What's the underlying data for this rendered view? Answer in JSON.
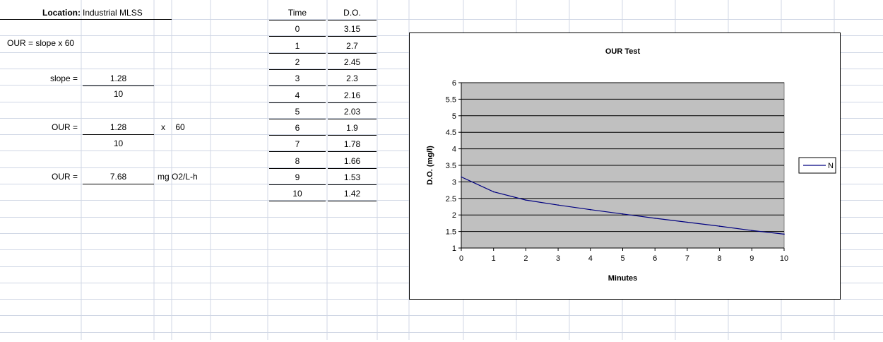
{
  "sheet": {
    "location_label": "Location:",
    "location_value": "Industrial MLSS",
    "formula": "OUR = slope x 60",
    "slope_label": "slope =",
    "slope_numerator": "1.28",
    "slope_denominator": "10",
    "our_label_1": "OUR =",
    "our_numerator": "1.28",
    "our_denominator": "10",
    "times_sign": "x",
    "multiplier": "60",
    "our_label_2": "OUR =",
    "our_result": "7.68",
    "our_units": "mg O2/L-h"
  },
  "table": {
    "headers": [
      "Time",
      "D.O."
    ],
    "rows": [
      [
        "0",
        "3.15"
      ],
      [
        "1",
        "2.7"
      ],
      [
        "2",
        "2.45"
      ],
      [
        "3",
        "2.3"
      ],
      [
        "4",
        "2.16"
      ],
      [
        "5",
        "2.03"
      ],
      [
        "6",
        "1.9"
      ],
      [
        "7",
        "1.78"
      ],
      [
        "8",
        "1.66"
      ],
      [
        "9",
        "1.53"
      ],
      [
        "10",
        "1.42"
      ]
    ]
  },
  "chart_data": {
    "type": "line",
    "title": "OUR Test",
    "xlabel": "Minutes",
    "ylabel": "D.O. (mg/l)",
    "x": [
      0,
      1,
      2,
      3,
      4,
      5,
      6,
      7,
      8,
      9,
      10
    ],
    "series": [
      {
        "name": "N",
        "values": [
          3.15,
          2.7,
          2.45,
          2.3,
          2.16,
          2.03,
          1.9,
          1.78,
          1.66,
          1.53,
          1.42
        ]
      }
    ],
    "xlim": [
      0,
      10
    ],
    "ylim": [
      1,
      6
    ],
    "xticks": [
      "0",
      "1",
      "2",
      "3",
      "4",
      "5",
      "6",
      "7",
      "8",
      "9",
      "10"
    ],
    "yticks": [
      "1",
      "1.5",
      "2",
      "2.5",
      "3",
      "3.5",
      "4",
      "4.5",
      "5",
      "5.5",
      "6"
    ],
    "grid": "horizontal",
    "legend": "right",
    "plot_bg": "#c0c0c0",
    "line_color": "#000080"
  }
}
